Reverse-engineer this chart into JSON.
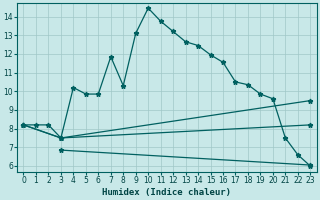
{
  "xlabel": "Humidex (Indice chaleur)",
  "bg_color": "#c8e8e8",
  "grid_color": "#a0c8c8",
  "line_color": "#006060",
  "xlim": [
    -0.5,
    23.5
  ],
  "ylim": [
    5.7,
    14.7
  ],
  "yticks": [
    6,
    7,
    8,
    9,
    10,
    11,
    12,
    13,
    14
  ],
  "xticks": [
    0,
    1,
    2,
    3,
    4,
    5,
    6,
    7,
    8,
    9,
    10,
    11,
    12,
    13,
    14,
    15,
    16,
    17,
    18,
    19,
    20,
    21,
    22,
    23
  ],
  "line1_x": [
    0,
    1,
    2,
    3,
    4,
    5,
    6,
    7,
    8,
    9,
    10,
    11,
    12,
    13,
    14,
    15,
    16,
    17,
    18,
    19,
    20,
    21,
    22,
    23
  ],
  "line1_y": [
    8.2,
    8.2,
    8.2,
    7.5,
    10.2,
    9.85,
    9.85,
    11.85,
    10.3,
    13.1,
    14.45,
    13.75,
    13.2,
    12.65,
    12.45,
    11.95,
    11.55,
    10.5,
    10.35,
    9.85,
    9.6,
    7.5,
    6.6,
    6.0
  ],
  "line2_x": [
    0,
    3,
    23
  ],
  "line2_y": [
    8.2,
    7.5,
    9.5
  ],
  "line3_x": [
    0,
    3,
    23
  ],
  "line3_y": [
    8.2,
    7.5,
    8.2
  ],
  "line4_x": [
    3,
    23
  ],
  "line4_y": [
    6.85,
    6.05
  ]
}
